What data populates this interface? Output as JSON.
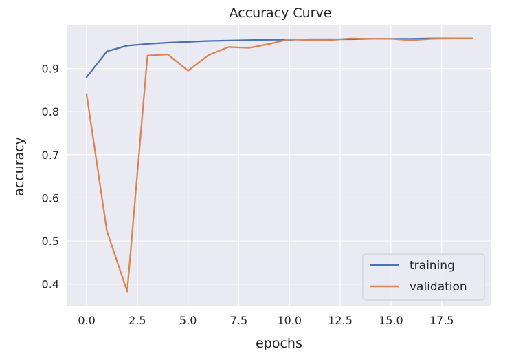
{
  "chart_data": {
    "type": "line",
    "title": "Accuracy Curve",
    "xlabel": "epochs",
    "ylabel": "accuracy",
    "xlim": [
      -0.95,
      19.95
    ],
    "ylim": [
      0.35,
      1.0
    ],
    "xticks": [
      0,
      2.5,
      5,
      7.5,
      10,
      12.5,
      15,
      17.5
    ],
    "xtick_labels": [
      "0.0",
      "2.5",
      "5.0",
      "7.5",
      "10.0",
      "12.5",
      "15.0",
      "17.5"
    ],
    "yticks": [
      0.4,
      0.5,
      0.6,
      0.7,
      0.8,
      0.9
    ],
    "ytick_labels": [
      "0.4",
      "0.5",
      "0.6",
      "0.7",
      "0.8",
      "0.9"
    ],
    "grid": true,
    "legend_position": "bottom-right",
    "x": [
      0,
      1,
      2,
      3,
      4,
      5,
      6,
      7,
      8,
      9,
      10,
      11,
      12,
      13,
      14,
      15,
      16,
      17,
      18,
      19
    ],
    "series": [
      {
        "name": "training",
        "color": "#4c72b0",
        "values": [
          0.88,
          0.94,
          0.953,
          0.957,
          0.96,
          0.962,
          0.964,
          0.965,
          0.966,
          0.967,
          0.967,
          0.968,
          0.968,
          0.968,
          0.969,
          0.969,
          0.969,
          0.97,
          0.97,
          0.97
        ]
      },
      {
        "name": "validation",
        "color": "#dd8452",
        "values": [
          0.841,
          0.523,
          0.383,
          0.93,
          0.933,
          0.895,
          0.931,
          0.95,
          0.948,
          0.957,
          0.968,
          0.966,
          0.966,
          0.97,
          0.969,
          0.969,
          0.966,
          0.969,
          0.97,
          0.97
        ]
      }
    ]
  },
  "colors": {
    "plot_background": "#eaeaf2",
    "grid": "#ffffff",
    "text": "#262626"
  }
}
